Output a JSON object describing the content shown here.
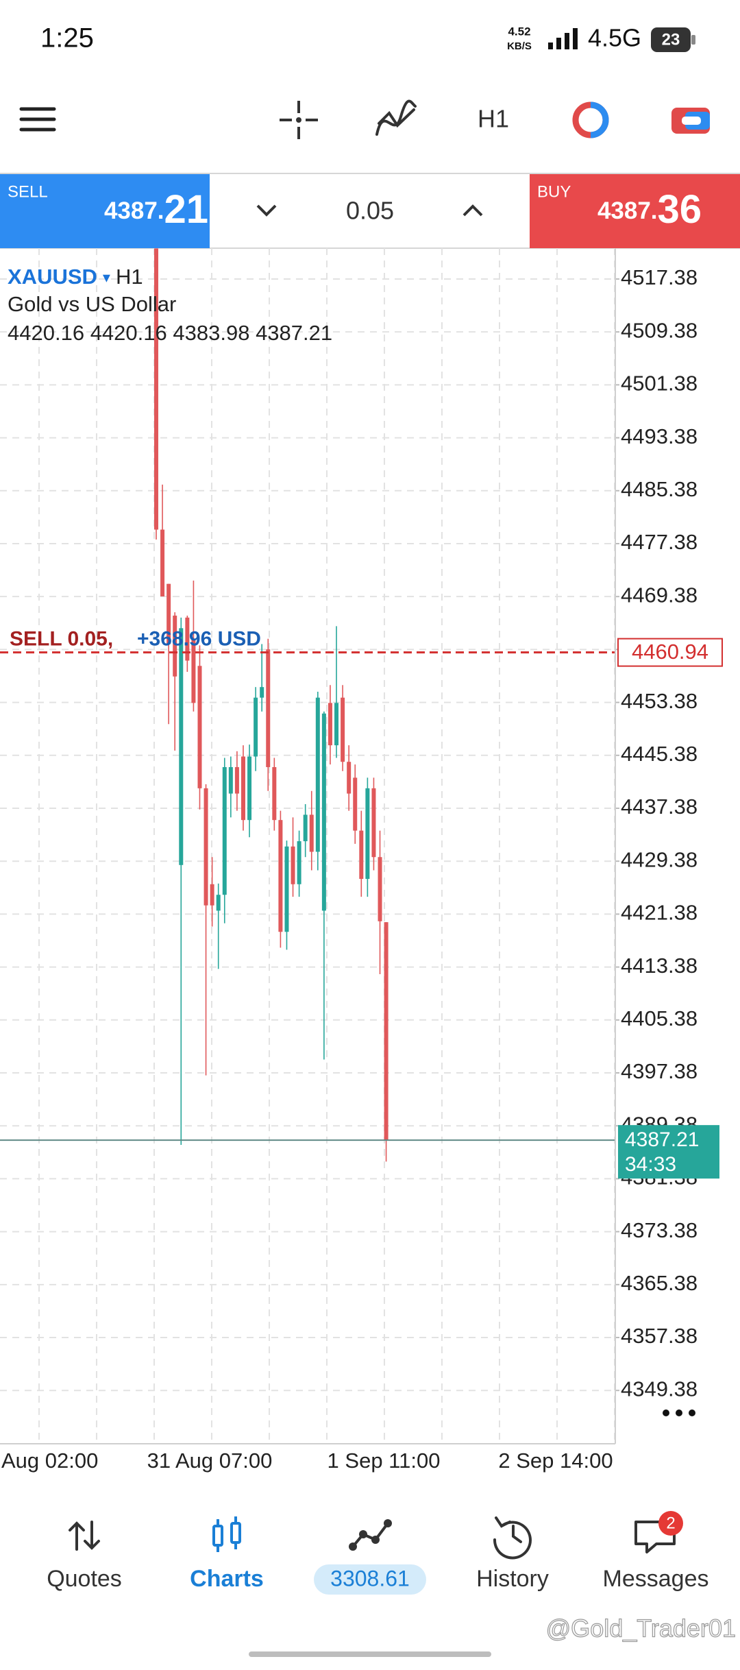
{
  "status_bar": {
    "time": "1:25",
    "net_speed": "4.52",
    "net_unit": "KB/S",
    "network": "4.5G",
    "battery": "23"
  },
  "toolbar": {
    "timeframe": "H1"
  },
  "trade_bar": {
    "sell_label": "SELL",
    "sell_price_main": "4387.",
    "sell_price_big": "21",
    "volume": "0.05",
    "buy_label": "BUY",
    "buy_price_main": "4387.",
    "buy_price_big": "36"
  },
  "chart_data": {
    "type": "candlestick",
    "symbol": "XAUUSD",
    "symbol_marker": "▾",
    "timeframe": "H1",
    "description": "Gold vs US Dollar",
    "open": [
      4522,
      4479.5,
      4471.3,
      4466.5,
      4428.8,
      4466.2,
      4463.0,
      4458.9,
      4440.4,
      4425.9,
      4421.9,
      4424.3,
      4439.6,
      4443.6,
      4445.2,
      4435.6,
      4445.2,
      4454.1,
      4461.4,
      4443.6,
      4435.6,
      4418.7,
      4431.6,
      4425.9,
      4432.4,
      4436.4,
      4430.8,
      4421.9,
      4453.3,
      4446.9,
      4454.1,
      4444.4,
      4442.0,
      4434.0,
      4426.7,
      4440.4,
      4430.0,
      4420.16
    ],
    "high": [
      4522,
      4486.3,
      4471.3,
      4467,
      4466.2,
      4466.5,
      4471.8,
      4462,
      4441,
      4430,
      4426,
      4445,
      4445.2,
      4446,
      4446.9,
      4447,
      4455.7,
      4462.2,
      4463.0,
      4445,
      4437,
      4432.5,
      4436,
      4434,
      4438,
      4440,
      4455,
      4452,
      4456,
      4464.9,
      4456,
      4446.9,
      4444,
      4437,
      4442,
      4442,
      4434,
      4420.16
    ],
    "low": [
      4478,
      4469.4,
      4450.1,
      4446.1,
      4386.5,
      4458,
      4452,
      4437.2,
      4397.0,
      4419.5,
      4413.1,
      4420,
      4436,
      4437,
      4434,
      4433,
      4443,
      4452,
      4440,
      4434,
      4416.3,
      4416,
      4424,
      4424,
      4430,
      4428,
      4428,
      4399.4,
      4444,
      4445,
      4443,
      4437,
      4432,
      4424,
      4424,
      4428,
      4412.3,
      4383.98
    ],
    "close": [
      4479.5,
      4469.4,
      4462.2,
      4457.3,
      4464.6,
      4459.7,
      4453.3,
      4440.4,
      4422.7,
      4422.7,
      4424.3,
      4443.6,
      4443.6,
      4439.6,
      4435.6,
      4445.2,
      4454.1,
      4455.7,
      4443.6,
      4435.6,
      4418.7,
      4431.6,
      4425.9,
      4432.4,
      4436.4,
      4430.8,
      4454.1,
      4451.7,
      4446.9,
      4453.3,
      4444.4,
      4439.6,
      4434.0,
      4426.7,
      4440.4,
      4430.0,
      4420.3,
      4387.21
    ],
    "up_color": "#26a69a",
    "down_color": "#e0585a",
    "ylim": [
      4341.32,
      4522.04
    ],
    "yticks": [
      4517.38,
      4509.38,
      4501.38,
      4493.38,
      4485.38,
      4477.38,
      4469.38,
      4461.38,
      4453.38,
      4445.38,
      4437.38,
      4429.38,
      4421.38,
      4413.38,
      4405.38,
      4397.38,
      4389.38,
      4381.38,
      4373.38,
      4365.38,
      4357.38,
      4349.38
    ],
    "x_labels": [
      "Aug 02:00",
      "31 Aug 07:00",
      "1 Sep 11:00",
      "2 Sep 14:00"
    ],
    "grid": true,
    "position": {
      "label": "SELL 0.05,",
      "profit": "+368.96 USD",
      "price": 4460.94,
      "color": "#d32f2f"
    },
    "current_price": {
      "price": 4387.21,
      "timer": "34:33",
      "color": "#26a69a"
    }
  },
  "nav": {
    "items": [
      "Quotes",
      "Charts",
      "History",
      "Messages"
    ],
    "balance": "3308.61",
    "badge": "2"
  },
  "watermark": "@Gold_Trader01"
}
